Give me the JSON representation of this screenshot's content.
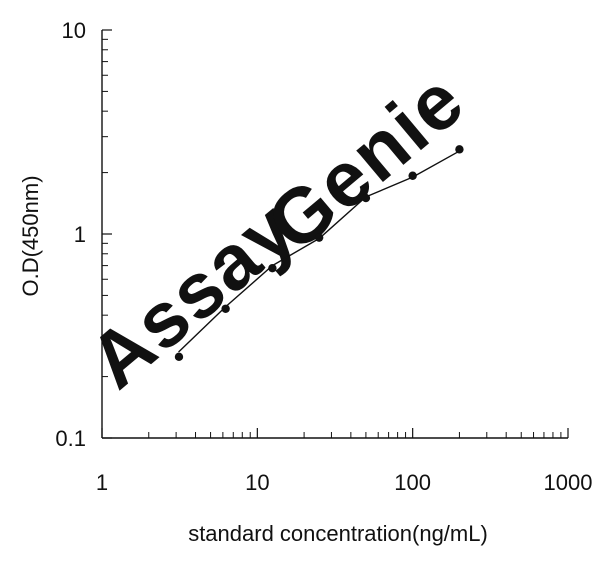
{
  "chart_data": {
    "type": "scatter",
    "title": "",
    "xlabel": "standard concentration(ng/mL)",
    "ylabel": "O.D(450nm)",
    "xscale": "log",
    "yscale": "log",
    "xlim": [
      1,
      1000
    ],
    "ylim": [
      0.1,
      10
    ],
    "x_ticks": [
      "1",
      "10",
      "100",
      "1000"
    ],
    "y_ticks": [
      "0.1",
      "1",
      "10"
    ],
    "grid": false,
    "legend": "none",
    "series": [
      {
        "x": [
          3.13,
          6.25,
          12.5,
          25,
          50,
          100,
          200
        ],
        "y": [
          0.25,
          0.43,
          0.68,
          0.96,
          1.5,
          1.93,
          2.6
        ]
      }
    ],
    "fit_curve": {
      "x": [
        3.13,
        6.25,
        12.5,
        25,
        50,
        100,
        200
      ],
      "y": [
        0.265,
        0.44,
        0.7,
        0.95,
        1.52,
        1.9,
        2.55
      ]
    },
    "watermark": {
      "text_left": "Assay",
      "text_right": "Genie"
    },
    "colors": {
      "axis": "#111111",
      "points": "#111111",
      "line": "#111111",
      "watermark_left": "#bfe1f3",
      "watermark_right": "#c9d3dd"
    }
  }
}
